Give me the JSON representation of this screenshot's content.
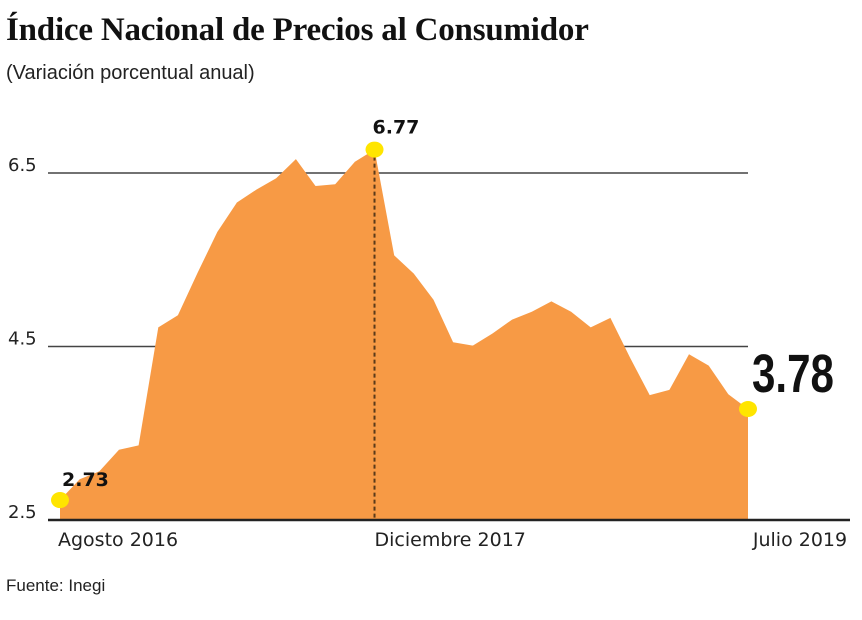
{
  "chart_data": {
    "type": "area",
    "title": "Índice Nacional de Precios al Consumidor",
    "subtitle": "(Variación porcentual anual)",
    "source": "Fuente: Inegi",
    "months": [
      "2016-08",
      "2016-09",
      "2016-10",
      "2016-11",
      "2016-12",
      "2017-01",
      "2017-02",
      "2017-03",
      "2017-04",
      "2017-05",
      "2017-06",
      "2017-07",
      "2017-08",
      "2017-09",
      "2017-10",
      "2017-11",
      "2017-12",
      "2018-01",
      "2018-02",
      "2018-03",
      "2018-04",
      "2018-05",
      "2018-06",
      "2018-07",
      "2018-08",
      "2018-09",
      "2018-10",
      "2018-11",
      "2018-12",
      "2019-01",
      "2019-02",
      "2019-03",
      "2019-04",
      "2019-05",
      "2019-06",
      "2019-07"
    ],
    "values": [
      2.73,
      2.97,
      3.06,
      3.31,
      3.36,
      4.72,
      4.86,
      5.35,
      5.82,
      6.16,
      6.31,
      6.44,
      6.66,
      6.35,
      6.37,
      6.63,
      6.77,
      5.55,
      5.34,
      5.04,
      4.55,
      4.51,
      4.65,
      4.81,
      4.9,
      5.02,
      4.9,
      4.72,
      4.83,
      4.37,
      3.94,
      4.0,
      4.41,
      4.28,
      3.95,
      3.78
    ],
    "ylim": [
      2.5,
      6.9
    ],
    "y_ticks": [
      "2.5",
      "4.5",
      "6.5"
    ],
    "y_tick_values": [
      2.5,
      4.5,
      6.5
    ],
    "x_tick_labels": [
      {
        "label": "Agosto 2016",
        "index": 0
      },
      {
        "label": "Diciembre 2017",
        "index": 16
      },
      {
        "label": "Julio 2019",
        "index": 35
      }
    ],
    "highlights": [
      {
        "index": 0,
        "label": "2.73"
      },
      {
        "index": 16,
        "label": "6.77"
      },
      {
        "index": 35,
        "label": "3.78"
      }
    ],
    "grid": true,
    "colors": {
      "area": "#f79a45",
      "marker": "#ffe500",
      "grid": "#444444"
    }
  }
}
